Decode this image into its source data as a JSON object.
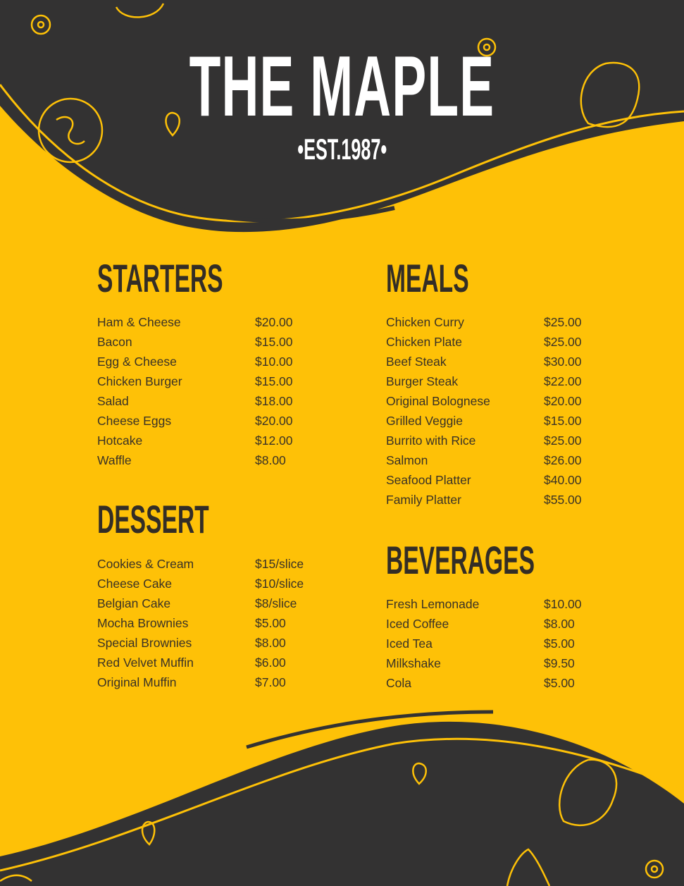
{
  "brand": {
    "name": "THE MAPLE",
    "established": "•EST.1987•"
  },
  "colors": {
    "background_dark": "#333232",
    "accent_yellow": "#FEC107",
    "text": "#332d26"
  },
  "decorations": [
    "tomato-slice-icon",
    "lemon-slice-icon",
    "pepper-icon",
    "seed-icon",
    "onion-icon",
    "herb-leaf-icon"
  ],
  "sections": {
    "starters": {
      "title": "STARTERS",
      "items": [
        {
          "name": "Ham & Cheese",
          "price": "$20.00"
        },
        {
          "name": "Bacon",
          "price": "$15.00"
        },
        {
          "name": "Egg & Cheese",
          "price": "$10.00"
        },
        {
          "name": "Chicken Burger",
          "price": "$15.00"
        },
        {
          "name": "Salad",
          "price": "$18.00"
        },
        {
          "name": "Cheese Eggs",
          "price": "$20.00"
        },
        {
          "name": "Hotcake",
          "price": "$12.00"
        },
        {
          "name": "Waffle",
          "price": "$8.00"
        }
      ]
    },
    "dessert": {
      "title": "DESSERT",
      "items": [
        {
          "name": "Cookies & Cream",
          "price": "$15/slice"
        },
        {
          "name": "Cheese Cake",
          "price": "$10/slice"
        },
        {
          "name": "Belgian Cake",
          "price": "$8/slice"
        },
        {
          "name": "Mocha Brownies",
          "price": "$5.00"
        },
        {
          "name": "Special Brownies",
          "price": "$8.00"
        },
        {
          "name": "Red Velvet Muffin",
          "price": "$6.00"
        },
        {
          "name": "Original Muffin",
          "price": "$7.00"
        }
      ]
    },
    "meals": {
      "title": "MEALS",
      "items": [
        {
          "name": "Chicken Curry",
          "price": "$25.00"
        },
        {
          "name": "Chicken Plate",
          "price": "$25.00"
        },
        {
          "name": "Beef Steak",
          "price": "$30.00"
        },
        {
          "name": "Burger Steak",
          "price": "$22.00"
        },
        {
          "name": "Original Bolognese",
          "price": "$20.00"
        },
        {
          "name": "Grilled Veggie",
          "price": "$15.00"
        },
        {
          "name": "Burrito with Rice",
          "price": "$25.00"
        },
        {
          "name": "Salmon",
          "price": "$26.00"
        },
        {
          "name": "Seafood Platter",
          "price": "$40.00"
        },
        {
          "name": "Family Platter",
          "price": "$55.00"
        }
      ]
    },
    "beverages": {
      "title": "BEVERAGES",
      "items": [
        {
          "name": "Fresh Lemonade",
          "price": "$10.00"
        },
        {
          "name": "Iced Coffee",
          "price": "$8.00"
        },
        {
          "name": "Iced Tea",
          "price": "$5.00"
        },
        {
          "name": "Milkshake",
          "price": "$9.50"
        },
        {
          "name": "Cola",
          "price": "$5.00"
        }
      ]
    }
  }
}
